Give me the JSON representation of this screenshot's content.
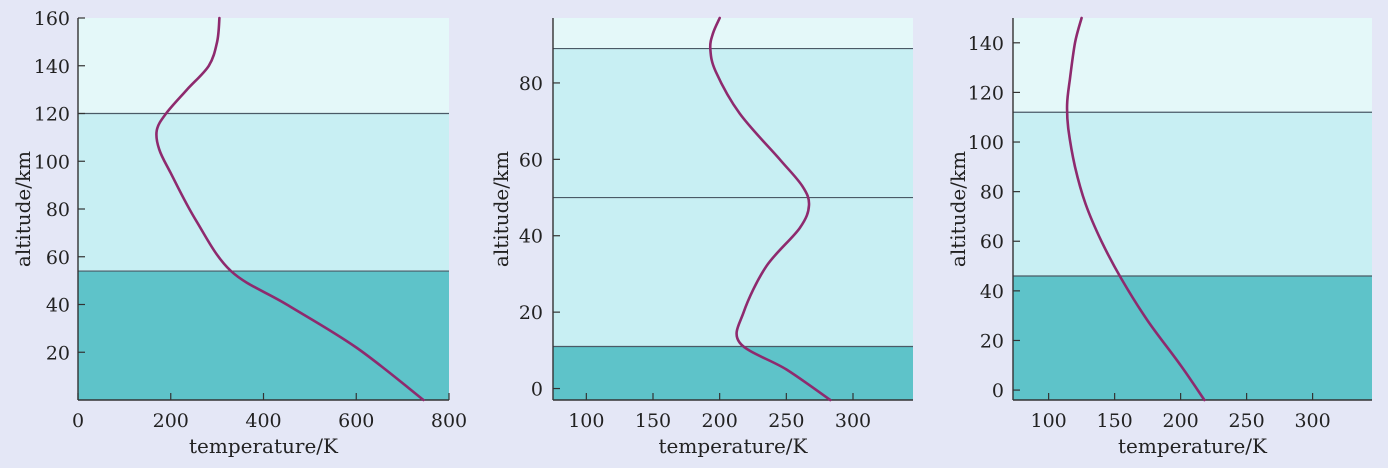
{
  "chart_data": [
    {
      "type": "line",
      "xlabel": "temperature/K",
      "ylabel": "altitude/km",
      "xlim": [
        0,
        800
      ],
      "ylim": [
        0,
        160
      ],
      "x_ticks": [
        0,
        200,
        400,
        600,
        800
      ],
      "y_ticks": [
        20,
        40,
        60,
        80,
        100,
        120,
        140,
        160
      ],
      "layers": [
        {
          "from": 0,
          "to": 54,
          "color": "#5ec3c9"
        },
        {
          "from": 54,
          "to": 120,
          "color": "#c8eff3"
        },
        {
          "from": 120,
          "to": 160,
          "color": "#e4f8f9"
        }
      ],
      "line_color": "#8e2a6e",
      "series": [
        {
          "x": [
            745,
            600,
            450,
            330,
            255,
            200,
            175,
            170,
            190,
            235,
            282,
            300,
            305
          ],
          "y": [
            0,
            22,
            40,
            54,
            75,
            95,
            105,
            113,
            120,
            130,
            140,
            150,
            160
          ]
        }
      ]
    },
    {
      "type": "line",
      "xlabel": "temperature/K",
      "ylabel": "altitude/km",
      "xlim": [
        75,
        345
      ],
      "ylim": [
        -3,
        97
      ],
      "x_ticks": [
        100,
        150,
        200,
        250,
        300
      ],
      "y_ticks": [
        0,
        20,
        40,
        60,
        80
      ],
      "layers": [
        {
          "from": -3,
          "to": 11,
          "color": "#5ec3c9"
        },
        {
          "from": 11,
          "to": 50,
          "color": "#c8eff3"
        },
        {
          "from": 50,
          "to": 89,
          "color": "#c8eff3"
        },
        {
          "from": 89,
          "to": 97,
          "color": "#e4f8f9"
        }
      ],
      "line_color": "#8e2a6e",
      "series": [
        {
          "x": [
            283,
            250,
            215,
            218,
            235,
            260,
            267,
            262,
            245,
            215,
            197,
            193,
            195,
            200
          ],
          "y": [
            -3,
            5,
            12,
            20,
            32,
            42,
            48,
            53,
            60,
            72,
            83,
            89,
            93,
            97
          ]
        }
      ]
    },
    {
      "type": "line",
      "xlabel": "temperature/K",
      "ylabel": "altitude/km",
      "xlim": [
        73,
        345
      ],
      "ylim": [
        -4,
        150
      ],
      "x_ticks": [
        100,
        150,
        200,
        250,
        300
      ],
      "y_ticks": [
        0,
        20,
        40,
        60,
        80,
        100,
        120,
        140
      ],
      "layers": [
        {
          "from": -4,
          "to": 46,
          "color": "#5ec3c9"
        },
        {
          "from": 46,
          "to": 112,
          "color": "#c8eff3"
        },
        {
          "from": 112,
          "to": 150,
          "color": "#e4f8f9"
        }
      ],
      "line_color": "#8e2a6e",
      "series": [
        {
          "x": [
            218,
            200,
            175,
            155,
            140,
            128,
            120,
            115,
            114,
            116,
            120,
            125
          ],
          "y": [
            -4,
            10,
            28,
            45,
            60,
            75,
            90,
            105,
            115,
            125,
            140,
            150
          ]
        }
      ]
    }
  ]
}
